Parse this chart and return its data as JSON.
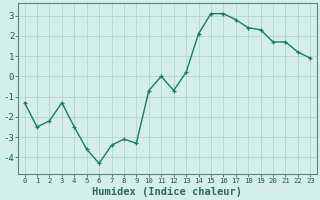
{
  "x": [
    0,
    1,
    2,
    3,
    4,
    5,
    6,
    7,
    8,
    9,
    10,
    11,
    12,
    13,
    14,
    15,
    16,
    17,
    18,
    19,
    20,
    21,
    22,
    23
  ],
  "y": [
    -1.3,
    -2.5,
    -2.2,
    -1.3,
    -2.5,
    -3.6,
    -4.3,
    -3.4,
    -3.1,
    -3.3,
    -0.7,
    0.0,
    -0.7,
    0.2,
    2.1,
    3.1,
    3.1,
    2.8,
    2.4,
    2.3,
    1.7,
    1.7,
    1.2,
    0.9
  ],
  "line_color": "#1a7a65",
  "marker": "+",
  "bg_color": "#d4eeea",
  "grid_color": "#b8d8d2",
  "xlabel": "Humidex (Indice chaleur)",
  "ylim": [
    -4.8,
    3.6
  ],
  "xlim": [
    -0.5,
    23.5
  ],
  "yticks": [
    -4,
    -3,
    -2,
    -1,
    0,
    1,
    2,
    3
  ],
  "xticks": [
    0,
    1,
    2,
    3,
    4,
    5,
    6,
    7,
    8,
    9,
    10,
    11,
    12,
    13,
    14,
    15,
    16,
    17,
    18,
    19,
    20,
    21,
    22,
    23
  ],
  "axis_color": "#2a6b5a",
  "tick_color": "#1a5a4a",
  "ytick_fontsize": 6.5,
  "xtick_fontsize": 5.2,
  "xlabel_fontsize": 7.5,
  "linewidth": 1.0,
  "markersize": 3.5,
  "spine_color": "#5a8a7a"
}
